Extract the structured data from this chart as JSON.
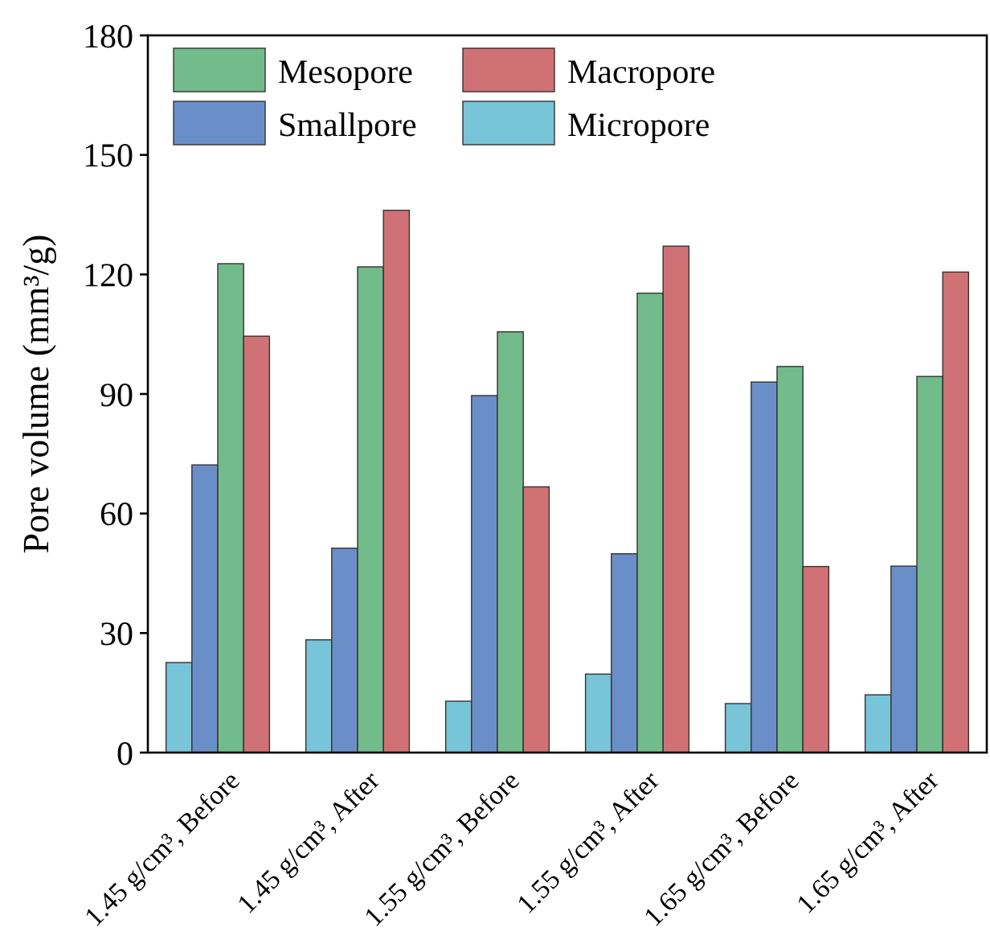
{
  "chart_data": {
    "type": "bar",
    "ylabel": "Pore volume (mm³/g)",
    "categories": [
      "1.45 g/cm³, Before",
      "1.45 g/cm³, After",
      "1.55 g/cm³, Before",
      "1.55 g/cm³, After",
      "1.65 g/cm³, Before",
      "1.65 g/cm³, After"
    ],
    "series": [
      {
        "name": "Micropore",
        "color": "#78c4d8",
        "values": [
          22.6,
          28.3,
          12.9,
          19.7,
          12.3,
          14.5
        ]
      },
      {
        "name": "Smallpore",
        "color": "#6a8fc8",
        "values": [
          72.2,
          51.3,
          89.6,
          49.9,
          93.0,
          46.8
        ]
      },
      {
        "name": "Mesopore",
        "color": "#72bb8a",
        "values": [
          122.7,
          121.9,
          105.6,
          115.3,
          96.9,
          94.4
        ]
      },
      {
        "name": "Macropore",
        "color": "#d07175",
        "values": [
          104.5,
          136.1,
          66.7,
          127.1,
          46.7,
          120.6
        ]
      }
    ],
    "ylim": [
      0,
      180
    ],
    "yticks": [
      0,
      30,
      60,
      90,
      120,
      150,
      180
    ],
    "grid": false,
    "legend": "top left"
  }
}
